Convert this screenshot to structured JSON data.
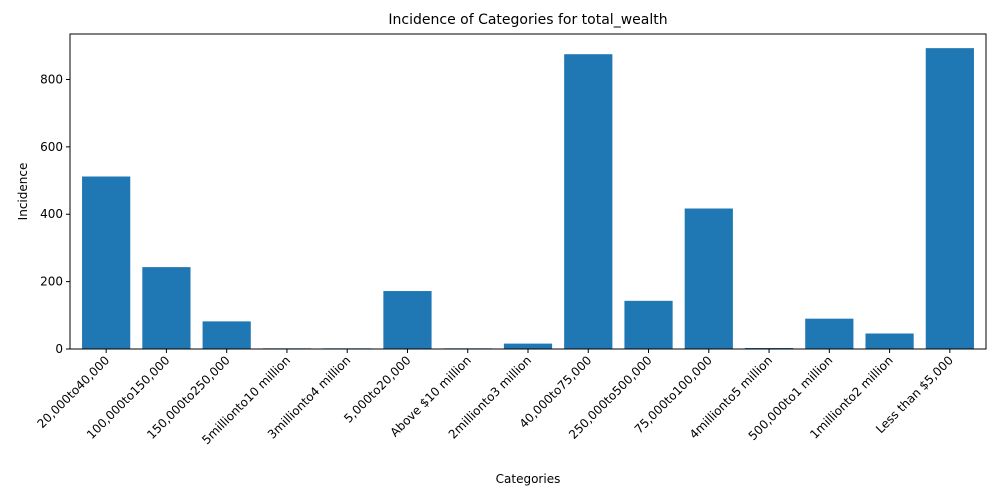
{
  "chart_data": {
    "type": "bar",
    "title": "Incidence of Categories for total_wealth",
    "xlabel": "Categories",
    "ylabel": "Incidence",
    "categories": [
      "20,000to40,000",
      "100,000to150,000",
      "150,000to250,000",
      "5millionto10 million",
      "3millionto4 million",
      "5,000to20,000",
      "Above $10 million",
      "2millionto3 million",
      "40,000to75,000",
      "250,000to500,000",
      "75,000to100,000",
      "4millionto5 million",
      "500,000to1 million",
      "1millionto2 million",
      "Less than $5,000"
    ],
    "values": [
      512,
      243,
      82,
      2,
      2,
      172,
      2,
      16,
      875,
      143,
      417,
      3,
      90,
      46,
      893
    ],
    "ylim": [
      0,
      935
    ],
    "yticks": [
      0,
      200,
      400,
      600,
      800
    ],
    "bar_color": "#1f77b4",
    "grid": false,
    "legend": "none"
  }
}
